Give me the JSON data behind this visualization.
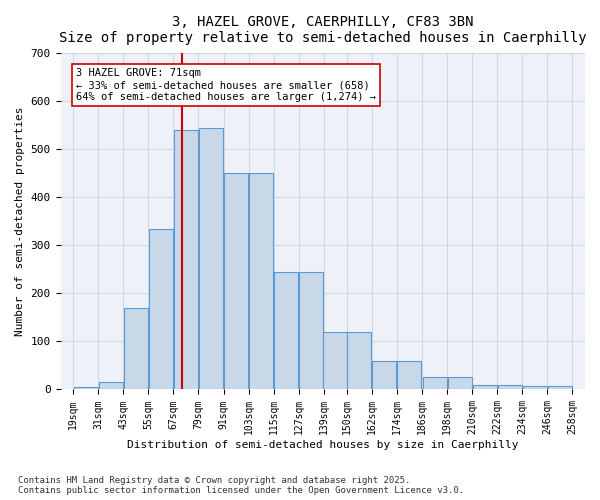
{
  "title": "3, HAZEL GROVE, CAERPHILLY, CF83 3BN",
  "subtitle": "Size of property relative to semi-detached houses in Caerphilly",
  "xlabel": "Distribution of semi-detached houses by size in Caerphilly",
  "ylabel": "Number of semi-detached properties",
  "bins": [
    19,
    31,
    43,
    55,
    67,
    79,
    91,
    103,
    115,
    127,
    139,
    150,
    162,
    174,
    186,
    198,
    210,
    222,
    234,
    246,
    258
  ],
  "bar_heights": [
    5,
    15,
    170,
    335,
    540,
    545,
    450,
    450,
    245,
    245,
    120,
    120,
    60,
    60,
    27,
    27,
    10,
    10,
    7,
    7
  ],
  "bar_color": "#c8d8e8",
  "bar_edge_color": "#5b9bd5",
  "vline_x": 71,
  "vline_color": "#cc0000",
  "annotation_text": "3 HAZEL GROVE: 71sqm\n← 33% of semi-detached houses are smaller (658)\n64% of semi-detached houses are larger (1,274) →",
  "annotation_box_color": "#ffffff",
  "annotation_box_edge": "#cc0000",
  "ylim": [
    0,
    700
  ],
  "yticks": [
    0,
    100,
    200,
    300,
    400,
    500,
    600,
    700
  ],
  "grid_color": "#d0d8e8",
  "background_color": "#eef2f8",
  "footnote": "Contains HM Land Registry data © Crown copyright and database right 2025.\nContains public sector information licensed under the Open Government Licence v3.0.",
  "tick_labels": [
    "19sqm",
    "31sqm",
    "43sqm",
    "55sqm",
    "67sqm",
    "79sqm",
    "91sqm",
    "103sqm",
    "115sqm",
    "127sqm",
    "139sqm",
    "150sqm",
    "162sqm",
    "174sqm",
    "186sqm",
    "198sqm",
    "210sqm",
    "222sqm",
    "234sqm",
    "246sqm",
    "258sqm"
  ]
}
